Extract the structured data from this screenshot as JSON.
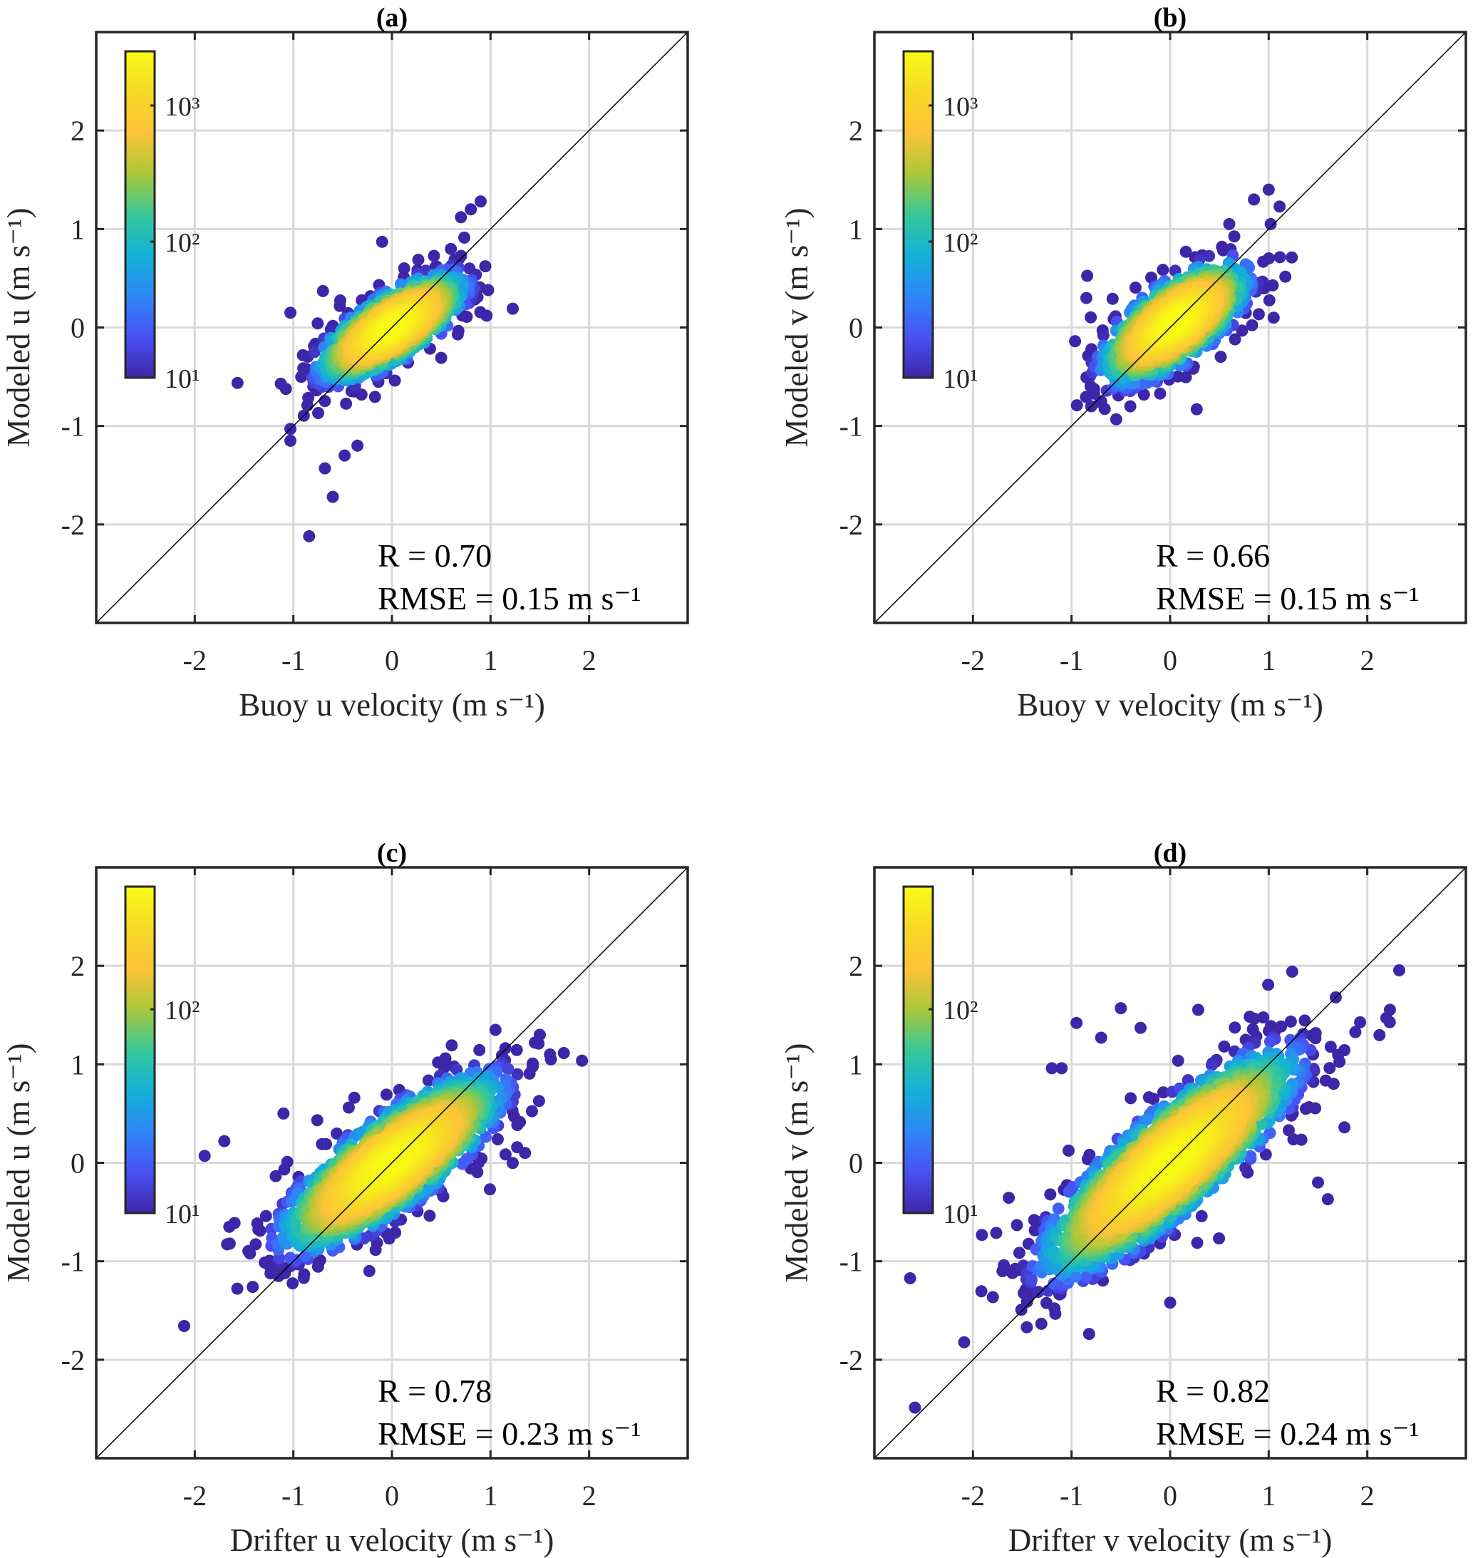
{
  "chart_data": [
    {
      "type": "scatter",
      "title": "(a)",
      "xlabel": "Buoy u velocity (m s⁻¹)",
      "ylabel": "Modeled u (m s⁻¹)",
      "xlim": [
        -3,
        3
      ],
      "ylim": [
        -3,
        3
      ],
      "xticks": [
        "-2",
        "-1",
        "0",
        "1",
        "2"
      ],
      "yticks": [
        "-2",
        "-1",
        "0",
        "1",
        "2"
      ],
      "grid": true,
      "reference_line": "1:1",
      "colorbar": {
        "scale": "log",
        "range": [
          10,
          2500
        ],
        "ticks": [
          "10¹",
          "10²",
          "10³"
        ],
        "colormap": "parula",
        "placement": "top-left"
      },
      "stats": {
        "r": "R = 0.70",
        "rmse": "RMSE = 0.15 m s⁻¹"
      },
      "outliers": [
        [
          -0.84,
          -2.12
        ],
        [
          -0.6,
          -1.72
        ],
        [
          -0.68,
          -1.43
        ],
        [
          -0.48,
          -1.3
        ],
        [
          -0.35,
          -1.2
        ],
        [
          -1.03,
          -1.15
        ],
        [
          -1.03,
          -1.03
        ],
        [
          0.9,
          1.28
        ],
        [
          0.8,
          1.2
        ],
        [
          0.7,
          1.12
        ],
        [
          -1.03,
          0.15
        ],
        [
          -0.7,
          0.37
        ],
        [
          -0.1,
          0.87
        ],
        [
          0.96,
          0.12
        ]
      ]
    },
    {
      "type": "scatter",
      "title": "(b)",
      "xlabel": "Buoy v velocity (m s⁻¹)",
      "ylabel": "Modeled v (m s⁻¹)",
      "xlim": [
        -3,
        3
      ],
      "ylim": [
        -3,
        3
      ],
      "xticks": [
        "-2",
        "-1",
        "0",
        "1",
        "2"
      ],
      "yticks": [
        "-2",
        "-1",
        "0",
        "1",
        "2"
      ],
      "grid": true,
      "reference_line": "1:1",
      "colorbar": {
        "scale": "log",
        "range": [
          10,
          2500
        ],
        "ticks": [
          "10¹",
          "10²",
          "10³"
        ],
        "colormap": "parula",
        "placement": "top-left"
      },
      "stats": {
        "r": "R = 0.66",
        "rmse": "RMSE = 0.15 m s⁻¹"
      },
      "outliers": [
        [
          1.0,
          1.4
        ],
        [
          1.02,
          1.05
        ],
        [
          0.85,
          1.3
        ],
        [
          0.27,
          -0.83
        ],
        [
          -0.85,
          0.3
        ],
        [
          -0.8,
          -0.8
        ],
        [
          -0.7,
          -0.75
        ],
        [
          1.05,
          0.1
        ],
        [
          0.6,
          1.05
        ]
      ]
    },
    {
      "type": "scatter",
      "title": "(c)",
      "xlabel": "Drifter u velocity (m s⁻¹)",
      "ylabel": "Modeled u (m s⁻¹)",
      "xlim": [
        -3,
        3
      ],
      "ylim": [
        -3,
        3
      ],
      "xticks": [
        "-2",
        "-1",
        "0",
        "1",
        "2"
      ],
      "yticks": [
        "-2",
        "-1",
        "0",
        "1",
        "2"
      ],
      "grid": true,
      "reference_line": "1:1",
      "colorbar": {
        "scale": "log",
        "range": [
          10,
          400
        ],
        "ticks": [
          "10¹",
          "10²"
        ],
        "colormap": "parula",
        "placement": "top-left"
      },
      "stats": {
        "r": "R = 0.78",
        "rmse": "RMSE = 0.23 m s⁻¹"
      },
      "outliers": [
        [
          -1.9,
          0.07
        ],
        [
          -1.65,
          -0.65
        ],
        [
          -1.7,
          0.22
        ],
        [
          1.5,
          1.3
        ],
        [
          1.45,
          1.22
        ],
        [
          1.35,
          0.1
        ],
        [
          1.05,
          1.35
        ],
        [
          -1.15,
          -1.15
        ],
        [
          -1.1,
          0.5
        ]
      ]
    },
    {
      "type": "scatter",
      "title": "(d)",
      "xlabel": "Drifter v velocity (m s⁻¹)",
      "ylabel": "Modeled v (m s⁻¹)",
      "xlim": [
        -3,
        3
      ],
      "ylim": [
        -3,
        3
      ],
      "xticks": [
        "-2",
        "-1",
        "0",
        "1",
        "2"
      ],
      "yticks": [
        "-2",
        "-1",
        "0",
        "1",
        "2"
      ],
      "grid": true,
      "reference_line": "1:1",
      "colorbar": {
        "scale": "log",
        "range": [
          10,
          400
        ],
        "ticks": [
          "10¹",
          "10²"
        ],
        "colormap": "parula",
        "placement": "top-left"
      },
      "stats": {
        "r": "R = 0.82",
        "rmse": "RMSE = 0.24 m s⁻¹"
      },
      "outliers": [
        [
          1.68,
          1.68
        ],
        [
          -0.5,
          1.57
        ],
        [
          -0.95,
          1.42
        ],
        [
          -0.7,
          1.27
        ],
        [
          1.6,
          -0.37
        ],
        [
          1.5,
          -0.2
        ],
        [
          -1.7,
          -1.1
        ],
        [
          -1.6,
          -1.12
        ],
        [
          0,
          -1.42
        ],
        [
          -1.2,
          0.96
        ],
        [
          -1.1,
          0.96
        ],
        [
          -0.3,
          1.37
        ],
        [
          1.45,
          1.1
        ]
      ]
    }
  ]
}
